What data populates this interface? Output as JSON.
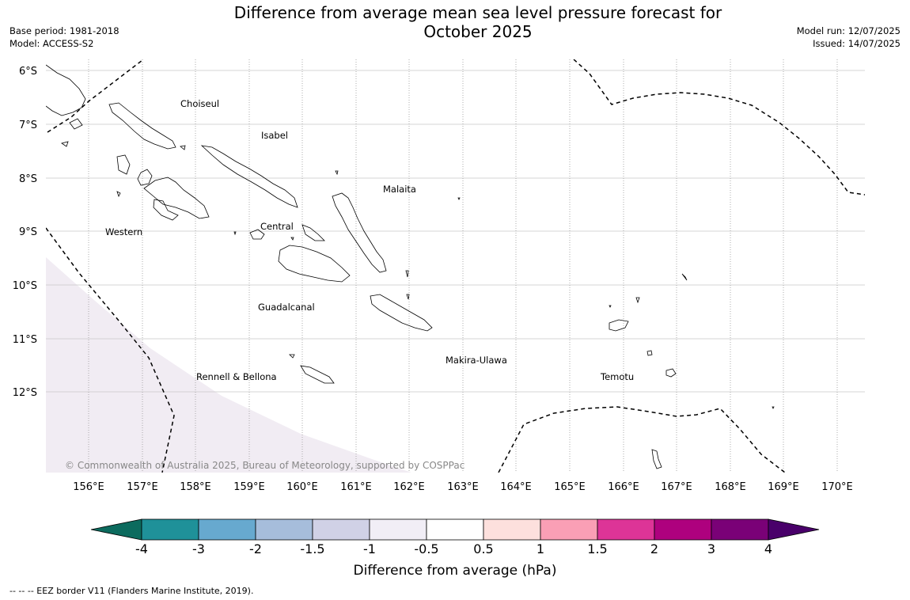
{
  "title": "Difference from average mean sea level pressure forecast for October 2025",
  "title_lines": [
    "Difference from average mean sea level pressure forecast for",
    "October 2025"
  ],
  "meta_left": [
    "Base period: 1981-2018",
    "Model: ACCESS-S2"
  ],
  "meta_right": [
    "Model run: 12/07/2025",
    "Issued: 14/07/2025"
  ],
  "map": {
    "lat_labels": [
      "6°S",
      "7°S",
      "8°S",
      "9°S",
      "10°S",
      "11°S",
      "12°S"
    ],
    "lon_labels": [
      "156°E",
      "157°E",
      "158°E",
      "159°E",
      "160°E",
      "161°E",
      "162°E",
      "163°E",
      "164°E",
      "165°E",
      "166°E",
      "167°E",
      "168°E",
      "169°E",
      "170°E"
    ],
    "regions": [
      "Choiseul",
      "Isabel",
      "Malaita",
      "Western",
      "Central",
      "Guadalcanal",
      "Makira-Ulawa",
      "Rennell & Bellona",
      "Temotu"
    ],
    "copyright": "© Commonwealth of Australia 2025, Bureau of Meteorology, supported by COSPPac",
    "shaded_category": "-1 to -0.5",
    "colors": {
      "shading": "#f1ecf3",
      "grid": "#cccccc",
      "eez": "#000000"
    }
  },
  "colorbar": {
    "ticks": [
      "-4",
      "-3",
      "-2",
      "-1.5",
      "-1",
      "-0.5",
      "0.5",
      "1",
      "1.5",
      "2",
      "3",
      "4"
    ],
    "label": "Difference from average (hPa)",
    "colors": [
      "#0c6b5e",
      "#1f9199",
      "#67a9cf",
      "#a6bddb",
      "#d0d1e6",
      "#f1eef6",
      "#ffffff",
      "#fde0dd",
      "#fa9fb5",
      "#dd3497",
      "#ae017e",
      "#7a0177",
      "#49006a"
    ]
  },
  "footnote": "--  --  -- EEZ border V11 (Flanders Marine Institute, 2019)."
}
